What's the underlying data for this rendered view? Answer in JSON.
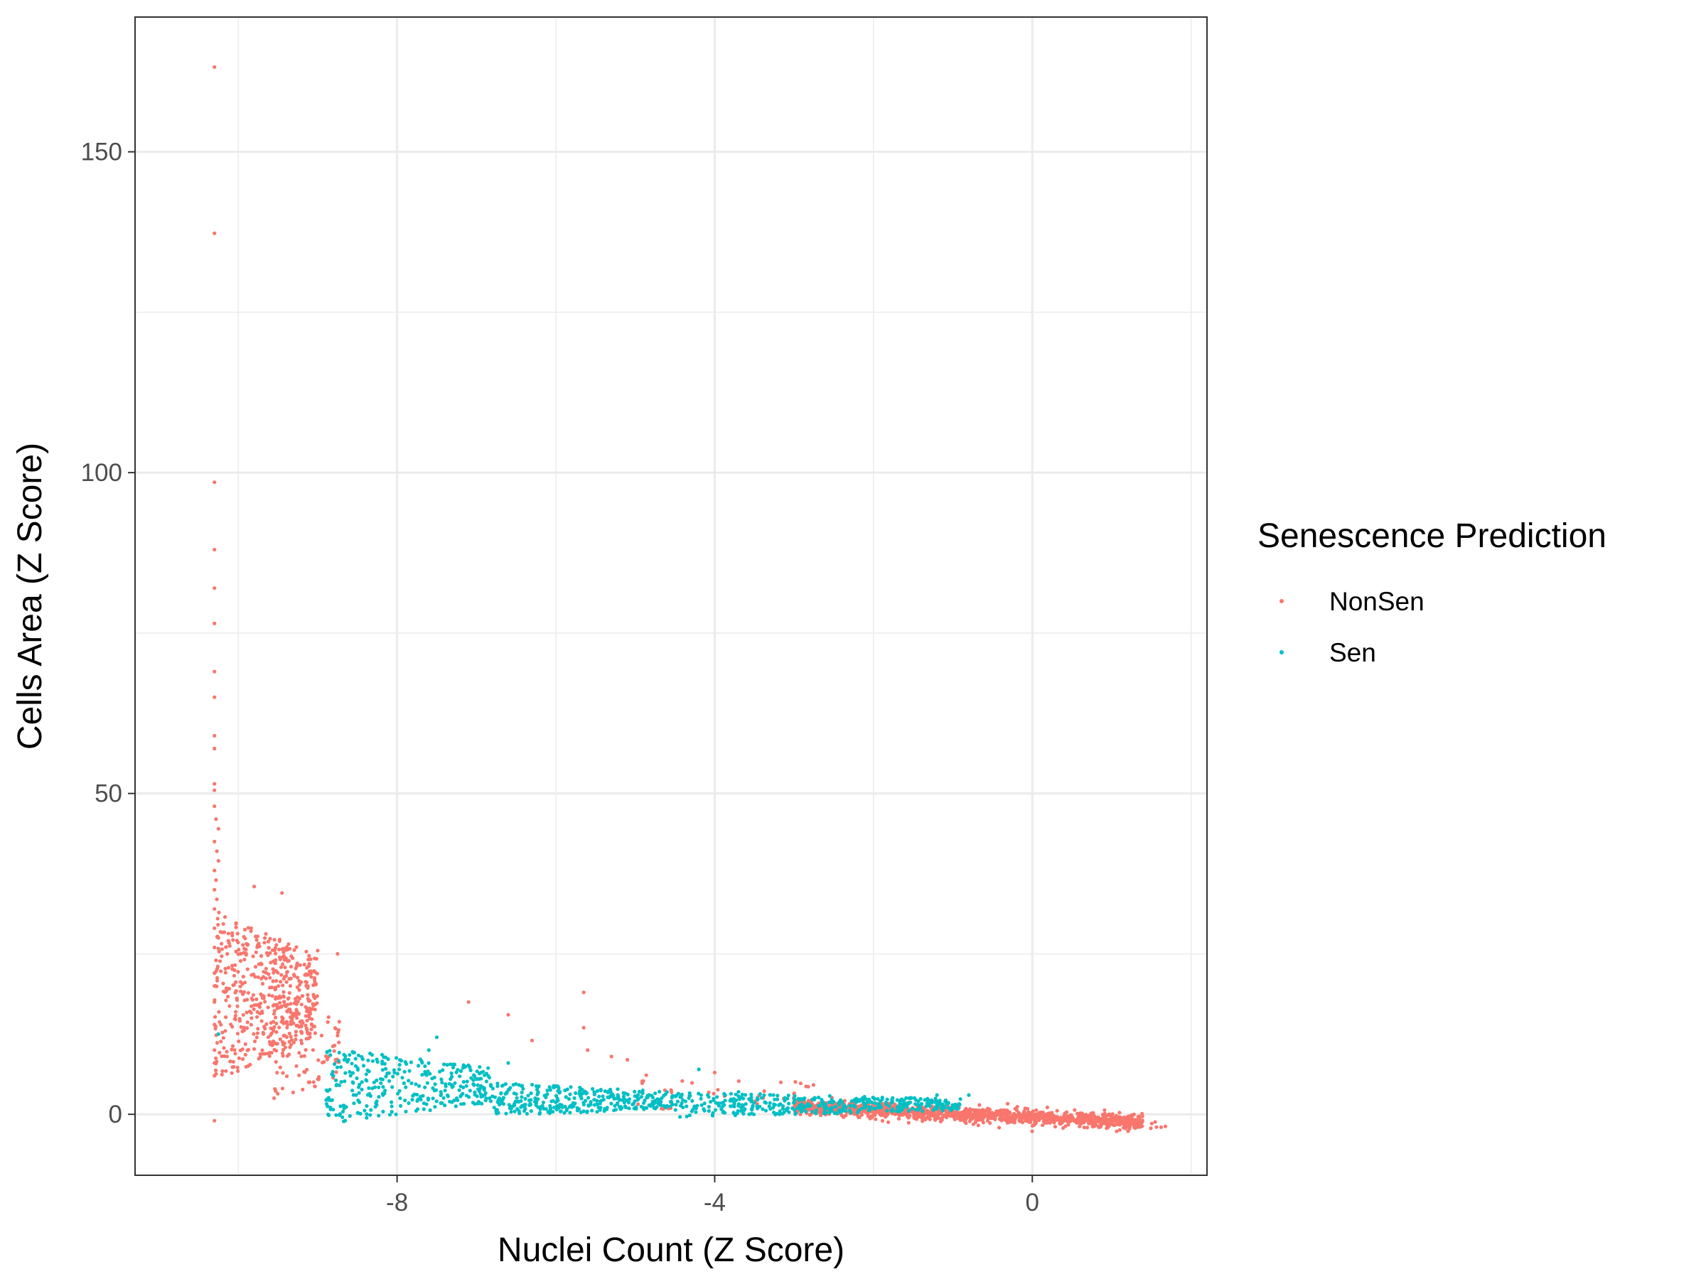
{
  "chart_data": {
    "type": "scatter",
    "title": "",
    "xlabel": "Nuclei Count (Z Score)",
    "ylabel": "Cells Area (Z Score)",
    "xlim": [
      -11.3,
      2.2
    ],
    "ylim": [
      -9.5,
      171
    ],
    "x_ticks": [
      -8,
      -4,
      0
    ],
    "y_ticks": [
      0,
      50,
      100,
      150
    ],
    "grid": true,
    "legend": {
      "title": "Senescence Prediction",
      "placement": "right",
      "entries": [
        {
          "name": "NonSen",
          "color": "#F8766D"
        },
        {
          "name": "Sen",
          "color": "#00BFC4"
        }
      ]
    },
    "series": [
      {
        "name": "NonSen",
        "color": "#F8766D",
        "points": [
          [
            -10.3,
            163.2
          ],
          [
            -10.3,
            137.3
          ],
          [
            -10.3,
            98.5
          ],
          [
            -10.3,
            88.0
          ],
          [
            -10.3,
            82.0
          ],
          [
            -10.3,
            76.5
          ],
          [
            -10.3,
            69.0
          ],
          [
            -10.3,
            65.0
          ],
          [
            -10.3,
            59.0
          ],
          [
            -10.3,
            57.0
          ],
          [
            -10.3,
            51.5
          ],
          [
            -10.3,
            50.5
          ],
          [
            -10.3,
            48.0
          ],
          [
            -10.28,
            46.0
          ],
          [
            -10.25,
            44.5
          ],
          [
            -10.3,
            42.5
          ],
          [
            -10.27,
            41.0
          ],
          [
            -10.25,
            39.5
          ],
          [
            -10.3,
            38.0
          ],
          [
            -10.28,
            36.5
          ],
          [
            -10.3,
            35.0
          ],
          [
            -10.27,
            33.5
          ],
          [
            -10.3,
            32.0
          ],
          [
            -10.26,
            30.5
          ],
          [
            -10.3,
            29.0
          ],
          [
            -10.25,
            27.5
          ],
          [
            -10.3,
            26.0
          ],
          [
            -10.28,
            24.0
          ],
          [
            -10.3,
            22.0
          ],
          [
            -10.3,
            20.0
          ],
          [
            -10.3,
            17.5
          ],
          [
            -10.3,
            14.0
          ],
          [
            -10.3,
            10.0
          ],
          [
            -10.3,
            8.0
          ],
          [
            -10.3,
            6.0
          ],
          [
            -10.3,
            -1.0
          ],
          [
            -9.8,
            35.5
          ],
          [
            -9.45,
            34.5
          ],
          [
            -9.0,
            25.5
          ],
          [
            -8.75,
            25.0
          ],
          [
            -7.1,
            17.5
          ],
          [
            -5.65,
            19.0
          ],
          [
            -5.65,
            13.5
          ],
          [
            -6.3,
            11.5
          ],
          [
            -6.6,
            15.5
          ],
          [
            -5.6,
            10.0
          ],
          [
            -5.3,
            9.0
          ],
          [
            -5.1,
            8.5
          ],
          [
            -4.2,
            7.0
          ],
          [
            -4.0,
            6.5
          ]
        ],
        "clusters": [
          {
            "x": [
              -10.3,
              -9.0
            ],
            "y": [
              5,
              32
            ],
            "n": 520,
            "skew": 0.0
          },
          {
            "x": [
              -9.6,
              -8.7
            ],
            "y": [
              1,
              20
            ],
            "n": 90,
            "skew": 0.0
          },
          {
            "x": [
              -5.0,
              -2.6
            ],
            "y": [
              0.5,
              6.5
            ],
            "n": 40,
            "skew": 0.0
          },
          {
            "x": [
              -3.0,
              1.4
            ],
            "y": [
              -3.0,
              3.0
            ],
            "n": 1400,
            "skew": 1.0
          },
          {
            "x": [
              1.4,
              1.8
            ],
            "y": [
              -2.5,
              -1.0
            ],
            "n": 6,
            "skew": 0.0
          }
        ]
      },
      {
        "name": "Sen",
        "color": "#00BFC4",
        "points": [
          [
            -10.25,
            12.5
          ],
          [
            -7.5,
            12.0
          ],
          [
            -7.6,
            10.0
          ],
          [
            -6.6,
            8.0
          ],
          [
            -4.2,
            7.0
          ],
          [
            -3.7,
            3.5
          ],
          [
            -1.2,
            3.0
          ],
          [
            -0.8,
            3.0
          ]
        ],
        "clusters": [
          {
            "x": [
              -8.9,
              -6.8
            ],
            "y": [
              -1.5,
              10.5
            ],
            "n": 330,
            "skew": 0.0
          },
          {
            "x": [
              -6.8,
              -4.5
            ],
            "y": [
              -0.5,
              5.0
            ],
            "n": 330,
            "skew": 0.0
          },
          {
            "x": [
              -4.5,
              -0.9
            ],
            "y": [
              -0.5,
              3.5
            ],
            "n": 420,
            "skew": 0.0
          }
        ]
      }
    ]
  }
}
